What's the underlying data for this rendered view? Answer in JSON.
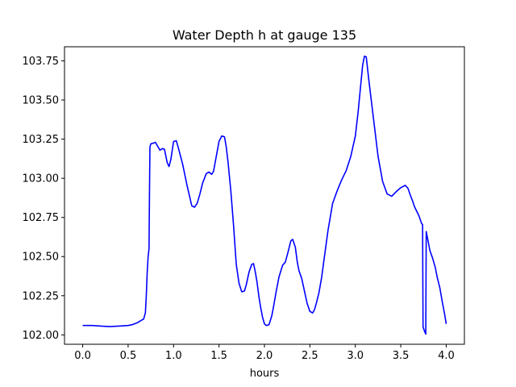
{
  "chart_data": {
    "type": "line",
    "title": "Water Depth h at gauge 135",
    "xlabel": "hours",
    "ylabel": "",
    "xlim": [
      -0.2,
      4.2
    ],
    "ylim": [
      101.94,
      103.84
    ],
    "x_ticks": [
      0.0,
      0.5,
      1.0,
      1.5,
      2.0,
      2.5,
      3.0,
      3.5,
      4.0
    ],
    "x_tick_labels": [
      "0.0",
      "0.5",
      "1.0",
      "1.5",
      "2.0",
      "2.5",
      "3.0",
      "3.5",
      "4.0"
    ],
    "y_ticks": [
      102.0,
      102.25,
      102.5,
      102.75,
      103.0,
      103.25,
      103.5,
      103.75
    ],
    "y_tick_labels": [
      "102.00",
      "102.25",
      "102.50",
      "102.75",
      "103.00",
      "103.25",
      "103.50",
      "103.75"
    ],
    "grid": false,
    "legend": "none",
    "series": [
      {
        "color": "#0000ff",
        "x": [
          0.0,
          0.1,
          0.2,
          0.3,
          0.4,
          0.5,
          0.55,
          0.6,
          0.65,
          0.67,
          0.69,
          0.7,
          0.71,
          0.72,
          0.73,
          0.735,
          0.74,
          0.75,
          0.78,
          0.8,
          0.85,
          0.88,
          0.9,
          0.93,
          0.95,
          0.97,
          1.0,
          1.03,
          1.05,
          1.1,
          1.15,
          1.2,
          1.23,
          1.26,
          1.29,
          1.32,
          1.36,
          1.39,
          1.42,
          1.44,
          1.47,
          1.5,
          1.53,
          1.56,
          1.58,
          1.6,
          1.63,
          1.66,
          1.69,
          1.72,
          1.75,
          1.78,
          1.8,
          1.83,
          1.86,
          1.88,
          1.9,
          1.92,
          1.94,
          1.96,
          1.98,
          2.0,
          2.02,
          2.05,
          2.08,
          2.1,
          2.13,
          2.16,
          2.2,
          2.23,
          2.26,
          2.29,
          2.31,
          2.34,
          2.36,
          2.38,
          2.41,
          2.44,
          2.47,
          2.5,
          2.53,
          2.55,
          2.57,
          2.6,
          2.63,
          2.66,
          2.7,
          2.75,
          2.8,
          2.85,
          2.9,
          2.95,
          3.0,
          3.03,
          3.06,
          3.08,
          3.1,
          3.12,
          3.15,
          3.2,
          3.25,
          3.3,
          3.35,
          3.4,
          3.45,
          3.5,
          3.55,
          3.58,
          3.6,
          3.63,
          3.65,
          3.7,
          3.73,
          3.74,
          3.745,
          3.76,
          3.775,
          3.78,
          3.8,
          3.82,
          3.85,
          3.88,
          3.9,
          3.93,
          3.96,
          3.98,
          4.0
        ],
        "y": [
          102.06,
          102.06,
          102.056,
          102.053,
          102.056,
          102.06,
          102.066,
          102.077,
          102.095,
          102.1,
          102.14,
          102.25,
          102.4,
          102.5,
          102.55,
          102.9,
          103.2,
          103.22,
          103.225,
          103.23,
          103.18,
          103.19,
          103.185,
          103.1,
          103.075,
          103.12,
          103.235,
          103.24,
          103.2,
          103.09,
          102.95,
          102.825,
          102.815,
          102.84,
          102.9,
          102.97,
          103.03,
          103.04,
          103.025,
          103.045,
          103.14,
          103.235,
          103.27,
          103.265,
          103.2,
          103.1,
          102.92,
          102.7,
          102.45,
          102.33,
          102.275,
          102.28,
          102.32,
          102.4,
          102.45,
          102.455,
          102.4,
          102.33,
          102.24,
          102.17,
          102.11,
          102.07,
          102.06,
          102.065,
          102.12,
          102.18,
          102.28,
          102.37,
          102.445,
          102.465,
          102.53,
          102.6,
          102.61,
          102.56,
          102.47,
          102.41,
          102.36,
          102.28,
          102.2,
          102.15,
          102.14,
          102.16,
          102.2,
          102.27,
          102.37,
          102.5,
          102.67,
          102.84,
          102.92,
          102.99,
          103.05,
          103.14,
          103.27,
          103.42,
          103.6,
          103.72,
          103.78,
          103.775,
          103.62,
          103.38,
          103.14,
          102.98,
          102.9,
          102.885,
          102.915,
          102.94,
          102.955,
          102.935,
          102.9,
          102.855,
          102.82,
          102.76,
          102.71,
          102.705,
          102.05,
          102.025,
          102.005,
          102.66,
          102.6,
          102.54,
          102.49,
          102.43,
          102.37,
          102.3,
          102.2,
          102.14,
          102.07
        ]
      }
    ]
  }
}
